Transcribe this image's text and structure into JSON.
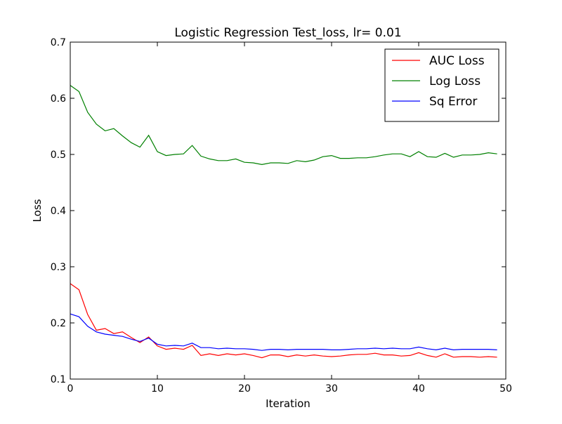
{
  "chart_data": {
    "type": "line",
    "title": "Logistic Regression Test_loss, lr= 0.01",
    "xlabel": "Iteration",
    "ylabel": "Loss",
    "xlim": [
      0,
      50
    ],
    "ylim": [
      0.1,
      0.7
    ],
    "xticks": [
      0,
      10,
      20,
      30,
      40,
      50
    ],
    "xtick_labels": [
      "0",
      "10",
      "20",
      "30",
      "40",
      "50"
    ],
    "yticks": [
      0.1,
      0.2,
      0.3,
      0.4,
      0.5,
      0.6,
      0.7
    ],
    "ytick_labels": [
      "0.1",
      "0.2",
      "0.3",
      "0.4",
      "0.5",
      "0.6",
      "0.7"
    ],
    "grid": false,
    "legend_position": "top-right",
    "x": [
      0,
      1,
      2,
      3,
      4,
      5,
      6,
      7,
      8,
      9,
      10,
      11,
      12,
      13,
      14,
      15,
      16,
      17,
      18,
      19,
      20,
      21,
      22,
      23,
      24,
      25,
      26,
      27,
      28,
      29,
      30,
      31,
      32,
      33,
      34,
      35,
      36,
      37,
      38,
      39,
      40,
      41,
      42,
      43,
      44,
      45,
      46,
      47,
      48,
      49
    ],
    "series": [
      {
        "name": "AUC Loss",
        "color": "#ff0000",
        "values": [
          0.27,
          0.259,
          0.215,
          0.187,
          0.19,
          0.181,
          0.184,
          0.174,
          0.165,
          0.175,
          0.159,
          0.153,
          0.155,
          0.153,
          0.16,
          0.142,
          0.145,
          0.142,
          0.145,
          0.143,
          0.145,
          0.142,
          0.138,
          0.143,
          0.143,
          0.14,
          0.143,
          0.141,
          0.143,
          0.141,
          0.14,
          0.141,
          0.143,
          0.144,
          0.144,
          0.146,
          0.143,
          0.143,
          0.141,
          0.142,
          0.147,
          0.142,
          0.139,
          0.145,
          0.139,
          0.14,
          0.14,
          0.139,
          0.14,
          0.139
        ]
      },
      {
        "name": "Log Loss",
        "color": "#008000",
        "values": [
          0.623,
          0.612,
          0.575,
          0.554,
          0.542,
          0.546,
          0.533,
          0.521,
          0.513,
          0.534,
          0.505,
          0.498,
          0.5,
          0.501,
          0.516,
          0.497,
          0.492,
          0.489,
          0.489,
          0.492,
          0.486,
          0.485,
          0.482,
          0.485,
          0.485,
          0.484,
          0.489,
          0.487,
          0.49,
          0.496,
          0.498,
          0.493,
          0.493,
          0.494,
          0.494,
          0.496,
          0.499,
          0.501,
          0.501,
          0.496,
          0.505,
          0.496,
          0.495,
          0.502,
          0.495,
          0.499,
          0.499,
          0.5,
          0.503,
          0.501
        ]
      },
      {
        "name": "Sq Error",
        "color": "#0000ff",
        "values": [
          0.216,
          0.211,
          0.194,
          0.184,
          0.18,
          0.178,
          0.176,
          0.171,
          0.167,
          0.173,
          0.162,
          0.159,
          0.16,
          0.159,
          0.164,
          0.156,
          0.156,
          0.154,
          0.155,
          0.154,
          0.154,
          0.153,
          0.151,
          0.153,
          0.153,
          0.152,
          0.153,
          0.153,
          0.153,
          0.153,
          0.152,
          0.152,
          0.153,
          0.154,
          0.154,
          0.155,
          0.154,
          0.155,
          0.154,
          0.154,
          0.157,
          0.154,
          0.152,
          0.155,
          0.152,
          0.153,
          0.153,
          0.153,
          0.153,
          0.152
        ]
      }
    ]
  }
}
